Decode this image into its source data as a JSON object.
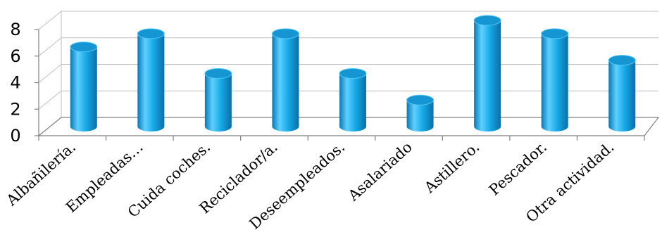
{
  "chart_data": {
    "type": "bar",
    "style": "3d-cylinder",
    "categories": [
      "Albañilería.",
      "Empleadas…",
      "Cuida coches.",
      "Reciclador/a.",
      "Deseempleados.",
      "Asalariado",
      "Astillero.",
      "Pescador.",
      "Otra actividad."
    ],
    "values": [
      6,
      7,
      4,
      7,
      4,
      2,
      8,
      7,
      5
    ],
    "ylim": [
      0,
      8
    ],
    "yticks": [
      "0",
      "2",
      "4",
      "6",
      "8"
    ],
    "grid": true,
    "legend": "none",
    "colors": {
      "bar_light": "#5ed0ff",
      "bar_mid": "#16a9e6",
      "bar_dark": "#0a78b4",
      "bar_top": "#1596d2",
      "grid": "#bfbfbf",
      "axis": "#808080"
    }
  }
}
